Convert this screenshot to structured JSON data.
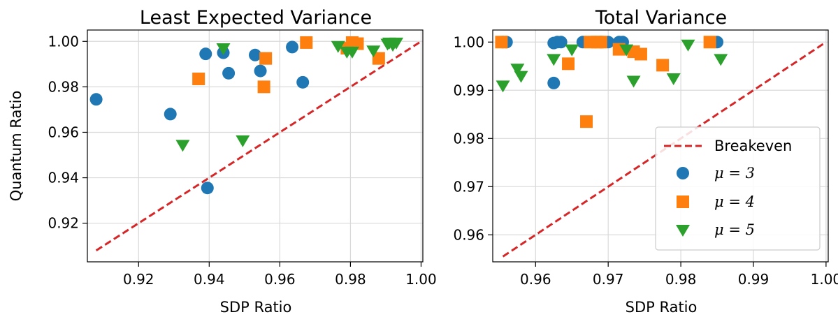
{
  "colors": {
    "mu3": "#1f77b4",
    "mu4": "#ff7f0e",
    "mu5": "#2ca02c",
    "breakeven": "#d62728"
  },
  "chart_data": [
    {
      "type": "scatter",
      "title": "Least Expected Variance",
      "xlabel": "SDP Ratio",
      "ylabel": "Quantum Ratio",
      "xlim": [
        0.9055,
        1.0005
      ],
      "ylim": [
        0.903,
        1.005
      ],
      "xticks": [
        "0.92",
        "0.94",
        "0.96",
        "0.98",
        "1.00"
      ],
      "yticks": [
        "0.92",
        "0.94",
        "0.96",
        "0.98",
        "1.00"
      ],
      "grid": true,
      "breakeven": {
        "x": [
          0.908,
          1.0
        ],
        "y": [
          0.908,
          1.0
        ]
      },
      "series": [
        {
          "name": "μ = 3",
          "marker": "circle",
          "points": [
            [
              0.908,
              0.9745
            ],
            [
              0.929,
              0.968
            ],
            [
              0.939,
              0.9945
            ],
            [
              0.9395,
              0.9355
            ],
            [
              0.944,
              0.995
            ],
            [
              0.9455,
              0.986
            ],
            [
              0.953,
              0.994
            ],
            [
              0.9545,
              0.987
            ],
            [
              0.9635,
              0.9975
            ],
            [
              0.9665,
              0.982
            ]
          ]
        },
        {
          "name": "μ = 4",
          "marker": "square",
          "points": [
            [
              0.937,
              0.9835
            ],
            [
              0.9555,
              0.98
            ],
            [
              0.956,
              0.9925
            ],
            [
              0.9675,
              0.9995
            ],
            [
              0.979,
              0.997
            ],
            [
              0.9805,
              0.9995
            ],
            [
              0.982,
              0.999
            ],
            [
              0.988,
              0.9925
            ]
          ]
        },
        {
          "name": "μ = 5",
          "marker": "triangle",
          "points": [
            [
              0.9325,
              0.9545
            ],
            [
              0.944,
              0.997
            ],
            [
              0.9495,
              0.9565
            ],
            [
              0.9765,
              0.998
            ],
            [
              0.979,
              0.9955
            ],
            [
              0.9805,
              0.9955
            ],
            [
              0.9865,
              0.996
            ],
            [
              0.9905,
              0.999
            ],
            [
              0.991,
              0.9995
            ],
            [
              0.992,
              0.9985
            ],
            [
              0.993,
              0.9995
            ]
          ]
        }
      ]
    },
    {
      "type": "scatter",
      "title": "Total Variance",
      "xlabel": "SDP Ratio",
      "ylabel": "",
      "xlim": [
        0.9541,
        1.0003
      ],
      "ylim": [
        0.9544,
        1.0025
      ],
      "xticks": [
        "0.96",
        "0.97",
        "0.98",
        "0.99",
        "1.00"
      ],
      "yticks": [
        "0.96",
        "0.97",
        "0.98",
        "0.99",
        "1.00"
      ],
      "grid": true,
      "breakeven": {
        "x": [
          0.9555,
          1.0
        ],
        "y": [
          0.9555,
          1.0
        ]
      },
      "series": [
        {
          "name": "μ = 3",
          "marker": "circle",
          "points": [
            [
              0.9555,
              1.0
            ],
            [
              0.956,
              1.0
            ],
            [
              0.9625,
              0.9915
            ],
            [
              0.9625,
              0.9998
            ],
            [
              0.963,
              1.0
            ],
            [
              0.9635,
              1.0
            ],
            [
              0.9665,
              1.0
            ],
            [
              0.969,
              1.0
            ],
            [
              0.97,
              1.0
            ],
            [
              0.9715,
              1.0
            ],
            [
              0.972,
              1.0
            ],
            [
              0.985,
              1.0
            ]
          ]
        },
        {
          "name": "μ = 4",
          "marker": "square",
          "points": [
            [
              0.9553,
              1.0
            ],
            [
              0.9645,
              0.9955
            ],
            [
              0.967,
              0.9835
            ],
            [
              0.9675,
              1.0
            ],
            [
              0.9685,
              1.0
            ],
            [
              0.969,
              1.0
            ],
            [
              0.9715,
              0.9985
            ],
            [
              0.9735,
              0.998
            ],
            [
              0.9745,
              0.9975
            ],
            [
              0.9775,
              0.9952
            ],
            [
              0.984,
              1.0
            ]
          ]
        },
        {
          "name": "μ = 5",
          "marker": "triangle",
          "points": [
            [
              0.9555,
              0.991
            ],
            [
              0.9575,
              0.9945
            ],
            [
              0.958,
              0.993
            ],
            [
              0.9625,
              0.9965
            ],
            [
              0.965,
              0.9985
            ],
            [
              0.9725,
              0.9985
            ],
            [
              0.9735,
              0.992
            ],
            [
              0.979,
              0.9925
            ],
            [
              0.981,
              0.9995
            ],
            [
              0.9855,
              0.9965
            ]
          ]
        }
      ],
      "legend": {
        "position": "lower-right",
        "entries": [
          "Breakeven",
          "μ = 3",
          "μ = 4",
          "μ = 5"
        ]
      }
    }
  ]
}
